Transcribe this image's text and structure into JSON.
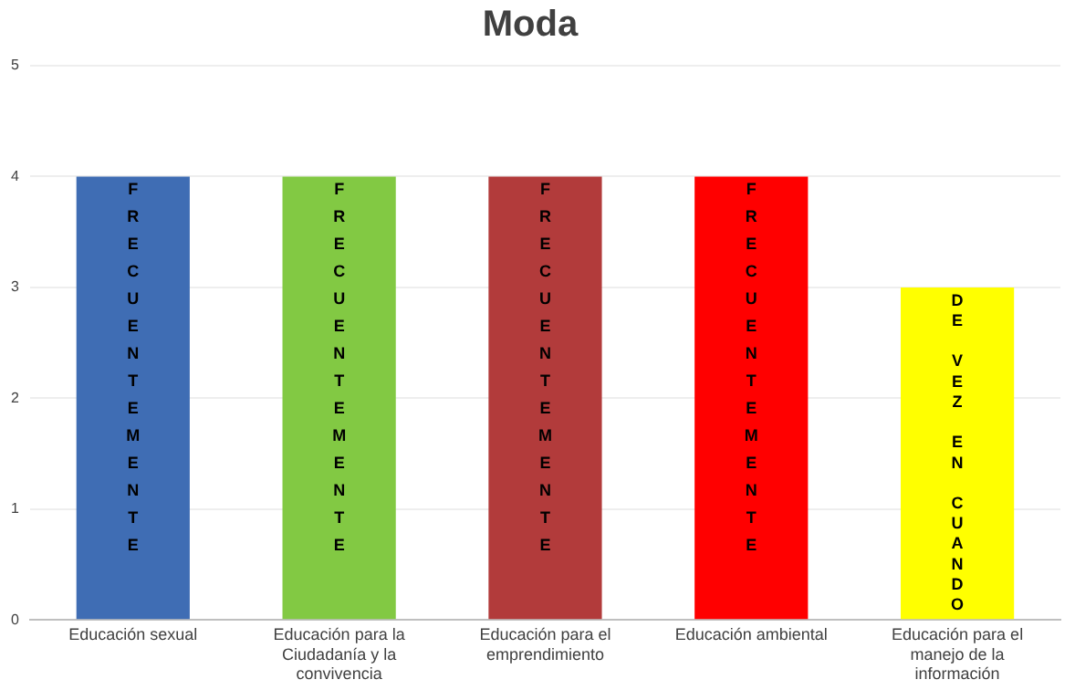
{
  "chart_data": {
    "type": "bar",
    "title": "Moda",
    "categories": [
      "Educación sexual",
      "Educación para la Ciudadanía y la convivencia",
      "Educación para el emprendimiento",
      "Educación ambiental",
      "Educación para el manejo de la información"
    ],
    "values": [
      4,
      4,
      4,
      4,
      3
    ],
    "colors": [
      "#3f6db4",
      "#82c943",
      "#b23b3b",
      "#ff0000",
      "#ffff00"
    ],
    "value_labels": [
      "FRECUENTEMENTE",
      "FRECUENTEMENTE",
      "FRECUENTEMENTE",
      "FRECUENTEMENTE",
      "DE VEZ EN CUANDO"
    ],
    "ylim": [
      0,
      5
    ],
    "yticks": [
      0,
      1,
      2,
      3,
      4,
      5
    ],
    "grid": "y",
    "legend": false
  }
}
